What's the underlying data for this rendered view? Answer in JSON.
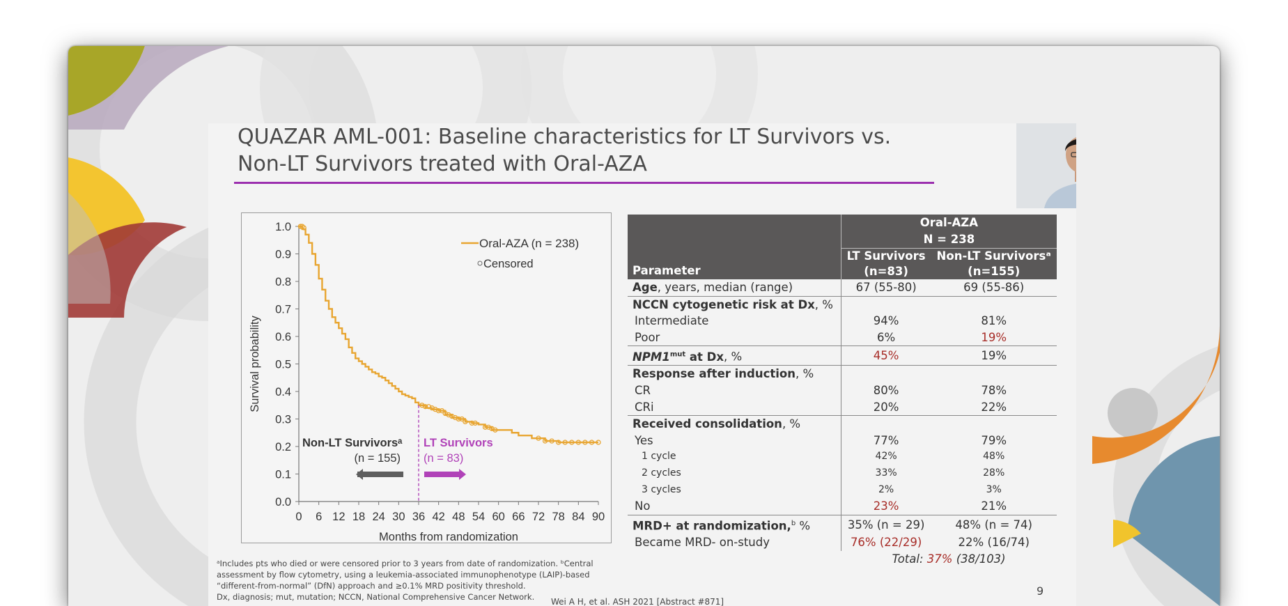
{
  "slide": {
    "title_line1": "QUAZAR AML-001: Baseline characteristics for LT Survivors vs.",
    "title_line2": "Non-LT Survivors treated with Oral-AZA",
    "page_number": "9",
    "reference": "Wei A H, et al. ASH 2021 [Abstract #871]",
    "footnotes": [
      "ᵃIncludes pts who died or were censored prior to 3 years from date of randomization. ᵇCentral",
      "assessment by flow cytometry, using a leukemia-associated immunophenotype (LAIP)-based",
      "“different-from-normal” (DfN) approach and ≥0.1% MRD positivity threshold.",
      "Dx, diagnosis; mut, mutation; NCCN, National Comprehensive Cancer Network."
    ]
  },
  "chart_data": {
    "type": "line",
    "xlabel": "Months from randomization",
    "ylabel": "Survival probability",
    "xlim": [
      0,
      90
    ],
    "ylim": [
      0,
      1.0
    ],
    "xticks": [
      "0",
      "6",
      "12",
      "18",
      "24",
      "30",
      "36",
      "42",
      "48",
      "54",
      "60",
      "66",
      "72",
      "78",
      "84",
      "90"
    ],
    "yticks": [
      "0.0",
      "0.1",
      "0.2",
      "0.3",
      "0.4",
      "0.5",
      "0.6",
      "0.7",
      "0.8",
      "0.9",
      "1.0"
    ],
    "legend": [
      "Oral-AZA (n = 238)",
      "Censored"
    ],
    "cutoff_month": 36,
    "annotations": {
      "non_lt_label": "Non-LT Survivorsᵃ",
      "non_lt_n": "(n = 155)",
      "lt_label": "LT Survivors",
      "lt_n": "(n = 83)"
    },
    "series": [
      {
        "name": "Oral-AZA (n = 238)",
        "color": "#e8a530",
        "x": [
          0,
          1,
          2,
          3,
          4,
          5,
          6,
          7,
          8,
          9,
          10,
          11,
          12,
          13,
          14,
          15,
          16,
          17,
          18,
          19,
          20,
          21,
          22,
          23,
          24,
          25,
          26,
          27,
          28,
          29,
          30,
          31,
          32,
          33,
          34,
          35,
          36,
          38,
          40,
          42,
          44,
          46,
          48,
          50,
          52,
          54,
          56,
          58,
          60,
          62,
          64,
          66,
          68,
          70,
          72,
          74,
          76,
          78,
          80,
          82,
          84,
          86,
          88,
          90
        ],
        "y": [
          1.0,
          0.99,
          0.97,
          0.94,
          0.9,
          0.86,
          0.81,
          0.77,
          0.73,
          0.7,
          0.67,
          0.65,
          0.63,
          0.61,
          0.59,
          0.56,
          0.54,
          0.52,
          0.51,
          0.5,
          0.49,
          0.48,
          0.47,
          0.465,
          0.455,
          0.45,
          0.44,
          0.43,
          0.42,
          0.41,
          0.4,
          0.39,
          0.385,
          0.38,
          0.375,
          0.36,
          0.35,
          0.34,
          0.335,
          0.33,
          0.315,
          0.305,
          0.3,
          0.29,
          0.285,
          0.28,
          0.27,
          0.26,
          0.26,
          0.26,
          0.25,
          0.24,
          0.24,
          0.23,
          0.23,
          0.22,
          0.22,
          0.215,
          0.215,
          0.215,
          0.215,
          0.215,
          0.215,
          0.215
        ]
      }
    ],
    "censored": {
      "x": [
        0.5,
        1,
        1.5,
        37,
        38,
        39,
        40,
        41,
        42,
        43,
        44,
        45,
        46,
        47,
        48,
        49,
        50,
        52,
        53,
        56,
        57,
        58,
        59,
        72,
        74,
        76,
        78,
        80,
        82,
        84,
        86,
        88,
        90
      ],
      "y": [
        1.0,
        1.0,
        0.995,
        0.35,
        0.345,
        0.345,
        0.34,
        0.335,
        0.33,
        0.33,
        0.32,
        0.315,
        0.31,
        0.305,
        0.3,
        0.3,
        0.29,
        0.285,
        0.285,
        0.27,
        0.27,
        0.265,
        0.26,
        0.23,
        0.22,
        0.22,
        0.215,
        0.215,
        0.215,
        0.215,
        0.215,
        0.215,
        0.215
      ]
    }
  },
  "table": {
    "group_header_line1": "Oral-AZA",
    "group_header_line2": "N = 238",
    "param_header": "Parameter",
    "col1_line1": "LT Survivors",
    "col1_line2": "(n=83)",
    "col2_line1": "Non-LT Survivorsᵃ",
    "col2_line2": "(n=155)",
    "rows": {
      "age": {
        "label_bold": "Age",
        "label_rest": ", years, median (range)",
        "lt": "67 (55-80)",
        "nonlt": "69 (55-86)"
      },
      "nccn": {
        "label_bold": "NCCN cytogenetic risk at Dx",
        "label_rest": ", %"
      },
      "intermediate": {
        "label": "Intermediate",
        "lt": "94%",
        "nonlt": "81%"
      },
      "poor": {
        "label": "Poor",
        "lt": "6%",
        "nonlt": "19%"
      },
      "npm1": {
        "label_italic": "NPM1",
        "label_sup": "mut",
        "label_bold": " at Dx",
        "label_rest": ", %",
        "lt": "45%",
        "nonlt": "19%"
      },
      "response": {
        "label_bold": "Response after induction",
        "label_rest": ", %"
      },
      "cr": {
        "label": "CR",
        "lt": "80%",
        "nonlt": "78%"
      },
      "cri": {
        "label": "CRi",
        "lt": "20%",
        "nonlt": "22%"
      },
      "consolidation": {
        "label_bold": "Received consolidation",
        "label_rest": ", %"
      },
      "yes": {
        "label": "Yes",
        "lt": "77%",
        "nonlt": "79%"
      },
      "c1": {
        "label": "1 cycle",
        "lt": "42%",
        "nonlt": "48%"
      },
      "c2": {
        "label": "2 cycles",
        "lt": "33%",
        "nonlt": "28%"
      },
      "c3": {
        "label": "3 cycles",
        "lt": "2%",
        "nonlt": "3%"
      },
      "no": {
        "label": "No",
        "lt": "23%",
        "nonlt": "21%"
      },
      "mrd": {
        "label_bold": "MRD+ at randomization,",
        "label_sup": "b",
        "label_rest": " %",
        "lt": "35% (n = 29)",
        "nonlt": "48% (n = 74)"
      },
      "became": {
        "label": "Became MRD- on-study",
        "lt": "76% (22/29)",
        "nonlt": "22% (16/74)"
      },
      "total": {
        "prefix": "Total: ",
        "pct": "37%",
        "suffix": " (38/103)"
      }
    }
  },
  "colors": {
    "accent_purple": "#9b2fae",
    "curve_orange": "#e8a530",
    "highlight_red": "#a72c27",
    "header_gray": "#5a5858",
    "lt_magenta": "#b042b8"
  }
}
